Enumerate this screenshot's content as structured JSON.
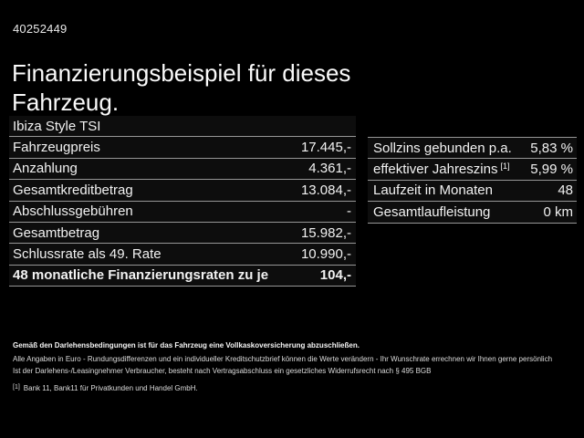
{
  "page": {
    "vehicle_id": "40252449",
    "title": "Finanzierungsbeispiel für dieses Fahrzeug."
  },
  "finance_table": {
    "vehicle_name": "Ibiza Style TSI",
    "rows": [
      {
        "label": "Fahrzeugpreis",
        "value": "17.445,-"
      },
      {
        "label": "Anzahlung",
        "value": "4.361,-"
      },
      {
        "label": "Gesamtkreditbetrag",
        "value": "13.084,-"
      },
      {
        "label": "Abschlussgebühren",
        "value": "-"
      },
      {
        "label": "Gesamtbetrag",
        "value": "15.982,-"
      },
      {
        "label": "Schlussrate als 49. Rate",
        "value": "10.990,-"
      },
      {
        "label": "48 monatliche Finanzierungsraten zu je",
        "value": "104,-",
        "emphasis": true
      }
    ]
  },
  "conditions_table": {
    "rows": [
      {
        "label": "Sollzins gebunden p.a.",
        "sup": "",
        "value": "5,83 %"
      },
      {
        "label": "effektiver Jahreszins",
        "sup": "[1]",
        "value": "5,99 %"
      },
      {
        "label": "Laufzeit in Monaten",
        "sup": "",
        "value": "48"
      },
      {
        "label": "Gesamtlaufleistung",
        "sup": "",
        "value": "0 km"
      }
    ]
  },
  "footer": {
    "insurance_note": "Gemäß den Darlehensbedingungen ist für das Fahrzeug eine Vollkaskoversicherung abzuschließen.",
    "note_line1": "Alle Angaben in Euro - Rundungsdifferenzen und ein individueller Kreditschutzbrief können die Werte verändern - Ihr Wunschrate errechnen wir Ihnen gerne persönlich",
    "note_line2": "Ist der Darlehens-/Leasingnehmer Verbraucher, besteht nach Vertragsabschluss ein gesetzliches Widerrufsrecht nach § 495 BGB",
    "footnote_marker": "[1]",
    "footnote_text": "Bank 11, Bank11 für Privatkunden und Handel GmbH."
  },
  "colors": {
    "background": "#000000",
    "text": "#f2f2f2",
    "divider": "#969696"
  }
}
